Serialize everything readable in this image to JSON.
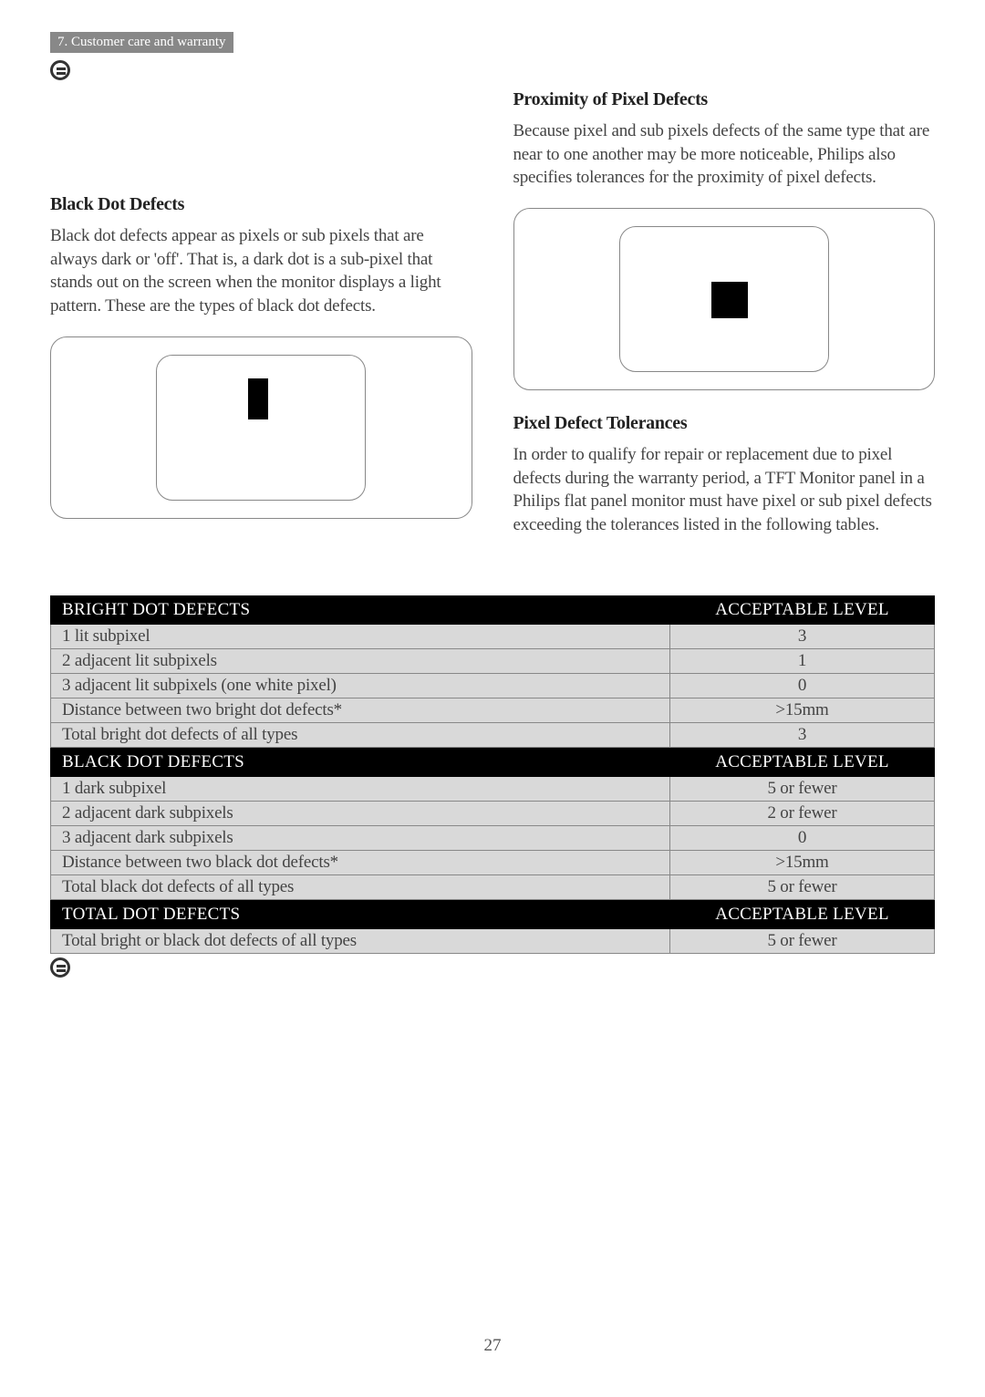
{
  "chapter_tag": "7. Customer care and warranty",
  "left": {
    "heading": "Black Dot Defects",
    "text": "Black dot defects appear as pixels or sub pixels that are always dark or 'off'. That is, a dark dot is a sub-pixel that stands out on the screen when the monitor displays a light pattern. These are the types of black dot defects."
  },
  "right": {
    "heading1": "Proximity of Pixel Defects",
    "text1": "Because pixel and sub pixels defects of the same type that are near to one another may be more noticeable, Philips also specifies tolerances for the proximity of pixel defects.",
    "heading2": "Pixel Defect Tolerances",
    "text2": "In order to qualify for repair or replacement due to pixel defects during the warranty period, a TFT Monitor panel in a Philips flat panel monitor must have pixel or sub pixel defects exceeding the tolerances listed in the following tables."
  },
  "tables": {
    "bright": {
      "header_left": "BRIGHT DOT DEFECTS",
      "header_right": "ACCEPTABLE LEVEL",
      "rows": [
        {
          "label": "1 lit subpixel",
          "value": "3"
        },
        {
          "label": "2 adjacent lit subpixels",
          "value": "1"
        },
        {
          "label": "3 adjacent lit subpixels (one white pixel)",
          "value": "0"
        },
        {
          "label": "Distance between two bright dot defects*",
          "value": ">15mm"
        },
        {
          "label": "Total bright dot defects of all types",
          "value": "3"
        }
      ]
    },
    "black": {
      "header_left": "BLACK DOT DEFECTS",
      "header_right": "ACCEPTABLE LEVEL",
      "rows": [
        {
          "label": "1 dark subpixel",
          "value": "5 or fewer"
        },
        {
          "label": "2 adjacent dark subpixels",
          "value": "2 or fewer"
        },
        {
          "label": "3 adjacent dark subpixels",
          "value": "0"
        },
        {
          "label": "Distance between two black dot defects*",
          "value": ">15mm"
        },
        {
          "label": "Total black dot defects of all types",
          "value": "5 or fewer"
        }
      ]
    },
    "total": {
      "header_left": "TOTAL DOT DEFECTS",
      "header_right": "ACCEPTABLE LEVEL",
      "rows": [
        {
          "label": "Total bright or black dot defects of all types",
          "value": "5 or fewer"
        }
      ]
    }
  },
  "page_number": "27",
  "colors": {
    "chapter_bg": "#888888",
    "chapter_fg": "#ffffff",
    "text": "#444444",
    "heading": "#222222",
    "th_bg": "#000000",
    "th_fg": "#ffffff",
    "td_bg": "#d9d9d9",
    "border": "#888888"
  },
  "typography": {
    "body_fontsize": 19,
    "heading_fontsize": 20,
    "font_family": "Georgia serif"
  }
}
